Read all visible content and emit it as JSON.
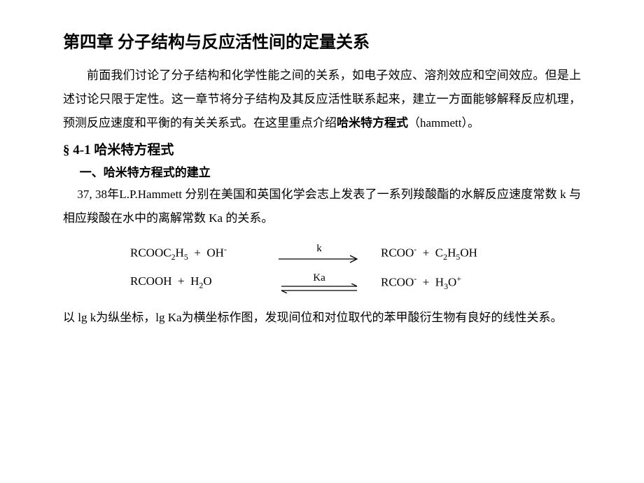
{
  "chapter": {
    "title": "第四章  分子结构与反应活性间的定量关系"
  },
  "intro": {
    "p1_pre": "前面我们讨论了分子结构和化学性能之间的关系，如电子效应、溶剂效应和空间效应。但是上述讨论只限于定性。这一章节将分子结构及其反应活性联系起来，建立一方面能够解释反应机理，预测反应速度和平衡的有关关系式。在这里重点介绍",
    "p1_bold": "哈米特方程式",
    "p1_post": "（hammett）。"
  },
  "section": {
    "title": "§ 4-1   哈米特方程式",
    "sub1": "一、哈米特方程式的建立",
    "p2": "37, 38年L.P.Hammett 分别在美国和英国化学会志上发表了一系列羧酸酯的水解反应速度常数 k 与相应羧酸在水中的离解常数 Ka 的关系。"
  },
  "equations": {
    "row1": {
      "left_html": "RCOOC<sub>2</sub>H<sub>5</sub>&nbsp;&nbsp;+&nbsp;&nbsp;OH<sup>-</sup>",
      "label": "k",
      "arrow_type": "single",
      "right_html": "RCOO<sup>-</sup>&nbsp;&nbsp;+&nbsp;&nbsp;C<sub>2</sub>H<sub>5</sub>OH"
    },
    "row2": {
      "left_html": "RCOOH&nbsp;&nbsp;+&nbsp;&nbsp;H<sub>2</sub>O",
      "label": "Ka",
      "arrow_type": "equilibrium",
      "right_html": "RCOO<sup>-</sup>&nbsp;&nbsp;+&nbsp;&nbsp;H<sub>3</sub>O<sup>+</sup>"
    }
  },
  "closing": {
    "p3": "以 lg k为纵坐标，lg Ka为横坐标作图，发现间位和对位取代的苯甲酸衍生物有良好的线性关系。"
  },
  "style": {
    "text_color": "#000000",
    "background_color": "#ffffff",
    "title_fontsize": 24,
    "body_fontsize": 17,
    "line_height": 2.0,
    "arrow_stroke": "#000000",
    "arrow_stroke_width": 1.3
  }
}
